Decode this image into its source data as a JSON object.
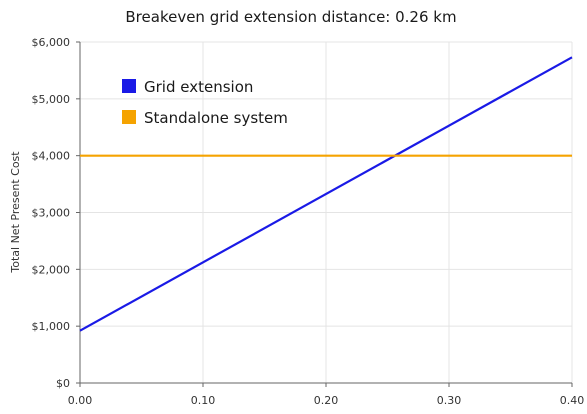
{
  "chart_data": {
    "type": "line",
    "title": "Breakeven grid extension distance: 0.26 km",
    "xlabel": "",
    "ylabel": "Total Net Present Cost",
    "xlim": [
      0,
      0.4
    ],
    "ylim": [
      0,
      6000
    ],
    "x_ticks": [
      0,
      0.1,
      0.2,
      0.3,
      0.4
    ],
    "x_tick_labels": [
      "0.00",
      "0.10",
      "0.20",
      "0.30",
      "0.40"
    ],
    "y_ticks": [
      0,
      1000,
      2000,
      3000,
      4000,
      5000,
      6000
    ],
    "y_tick_labels": [
      "$0",
      "$1,000",
      "$2,000",
      "$3,000",
      "$4,000",
      "$5,000",
      "$6,000"
    ],
    "grid": true,
    "legend_placement": "top-left",
    "series": [
      {
        "name": "Grid extension",
        "color": "#1a1ae6",
        "x": [
          0,
          0.4
        ],
        "y": [
          920,
          5730
        ]
      },
      {
        "name": "Standalone system",
        "color": "#f5a300",
        "x": [
          0,
          0.4
        ],
        "y": [
          4000,
          4000
        ]
      }
    ]
  }
}
